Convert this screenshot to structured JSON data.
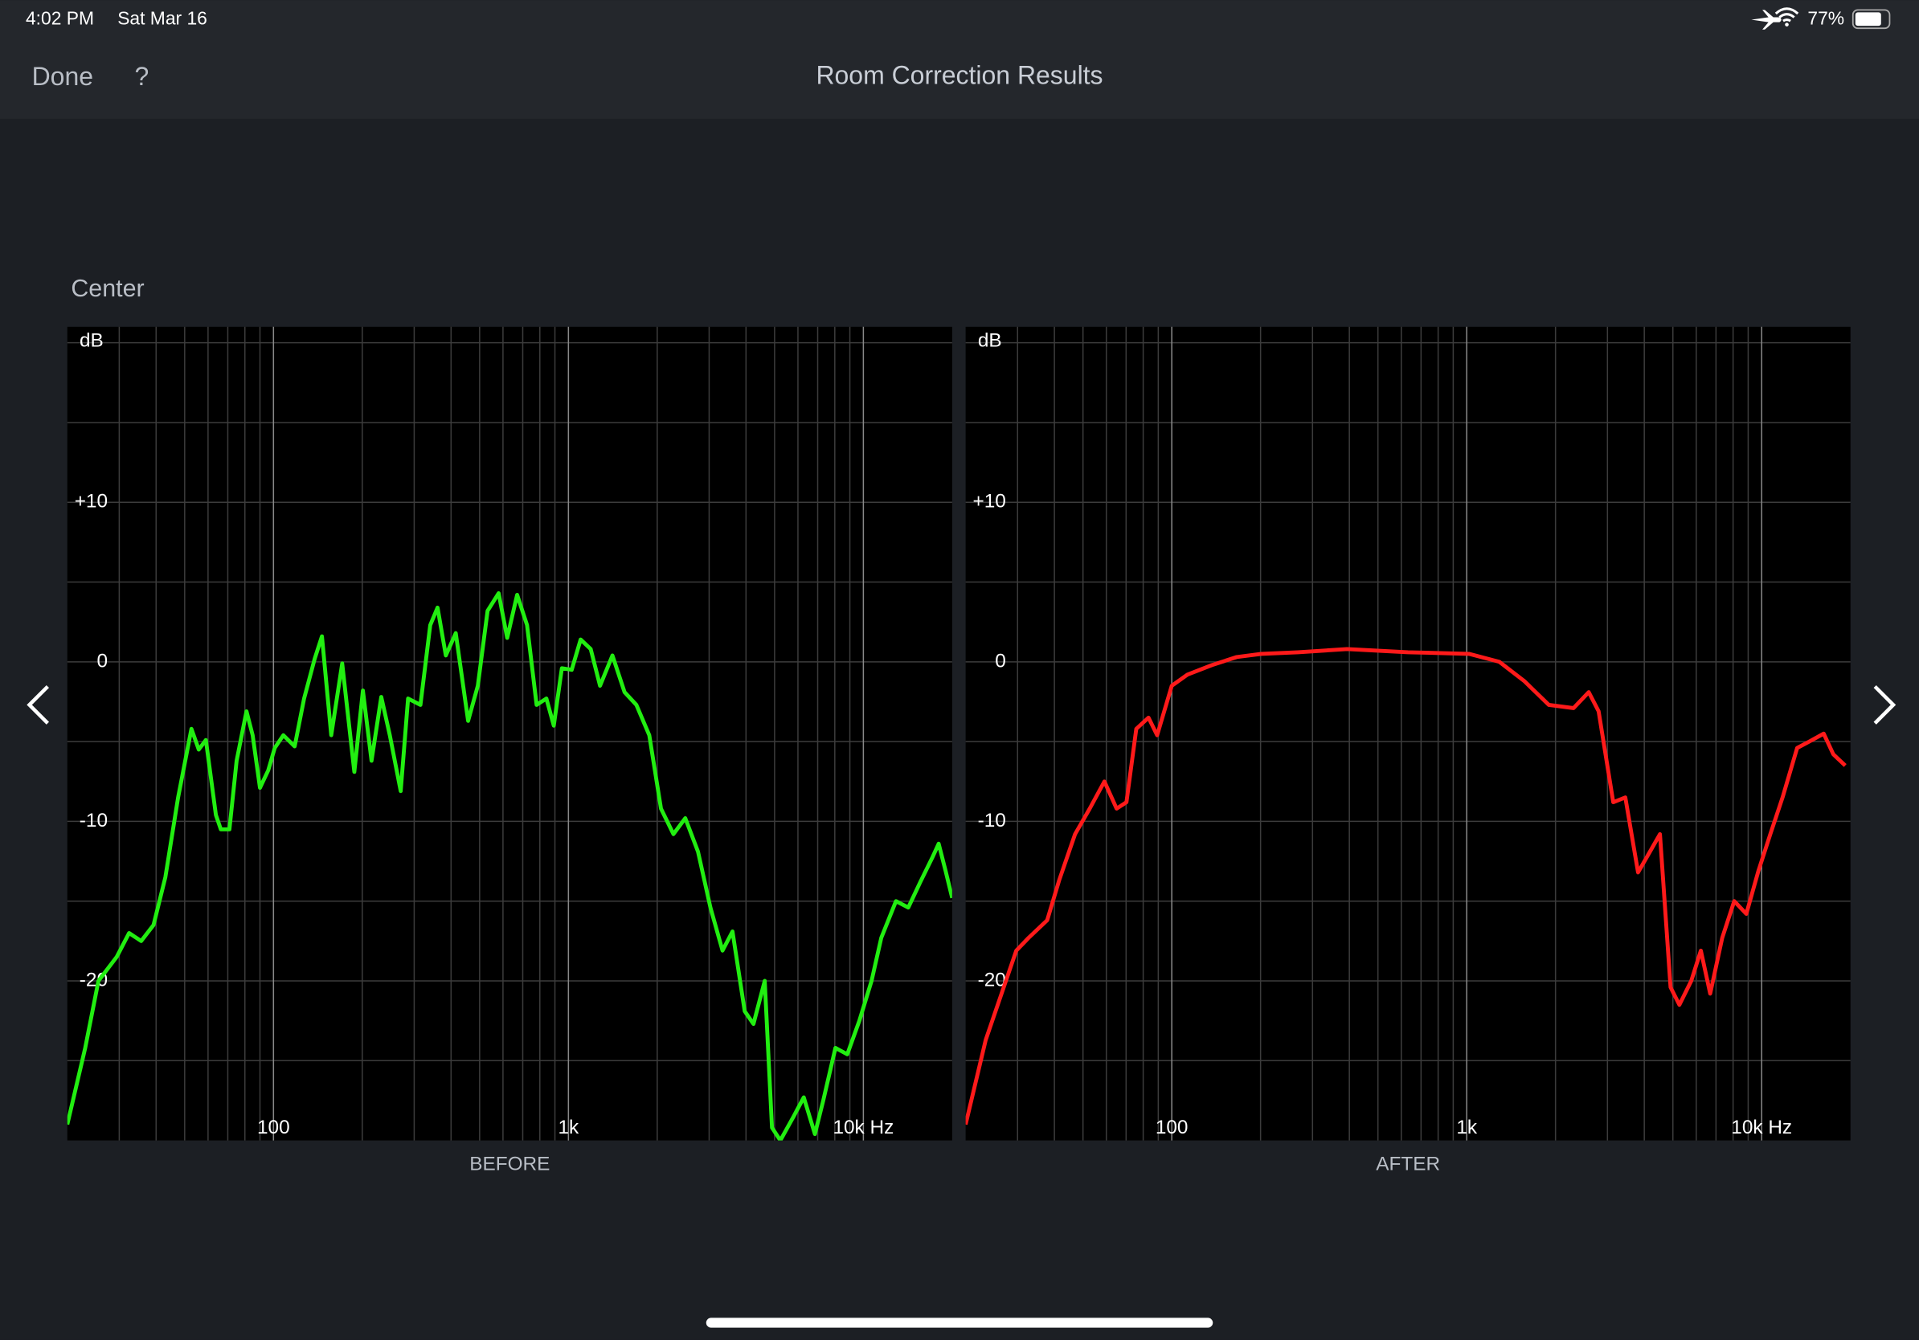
{
  "status": {
    "time": "4:02 PM",
    "date": "Sat Mar 16",
    "battery": "77%"
  },
  "nav": {
    "done": "Done",
    "help": "?",
    "title": "Room Correction Results"
  },
  "section": "Center",
  "chart_data": [
    {
      "type": "line",
      "title": "BEFORE",
      "ylabel": "dB",
      "xscale": "log",
      "grid": true,
      "xlim": [
        20,
        20000
      ],
      "ylim": [
        -30,
        21
      ],
      "xticks": [
        100,
        {
          "value": 1000,
          "label": "1k"
        },
        {
          "value": 10000,
          "label": "10k Hz"
        }
      ],
      "x_minor_grid": [
        30,
        40,
        50,
        60,
        70,
        80,
        90,
        200,
        300,
        400,
        500,
        600,
        700,
        800,
        900,
        2000,
        3000,
        4000,
        5000,
        6000,
        7000,
        8000,
        9000
      ],
      "yticks": [
        {
          "value": 10,
          "label": "+10"
        },
        0,
        -10,
        -20
      ],
      "y_minor_grid": [
        20,
        15,
        5,
        -5,
        -15,
        -25
      ],
      "x": [
        20,
        23,
        25.5,
        29.4,
        32.4,
        35.6,
        39.2,
        43,
        47.5,
        52.7,
        55.8,
        59,
        63.8,
        66.3,
        70.9,
        75,
        81,
        85,
        90,
        96,
        101,
        108,
        118,
        127,
        138,
        146,
        157,
        171,
        188,
        201,
        215,
        232,
        248,
        270,
        286,
        315,
        340,
        360,
        384,
        415,
        457,
        493,
        532,
        580,
        620,
        670,
        724,
        780,
        842,
        892,
        950,
        1026,
        1100,
        1190,
        1280,
        1410,
        1550,
        1700,
        1880,
        2060,
        2270,
        2490,
        2750,
        3030,
        3330,
        3600,
        3960,
        4240,
        4630,
        4900,
        5230,
        5800,
        6280,
        6850,
        7310,
        8040,
        8820,
        9690,
        10660,
        11500,
        12900,
        14200,
        15600,
        17100,
        18000,
        19000,
        20000
      ],
      "series": [
        {
          "color": "#22ee11",
          "values": [
            -29,
            -24.2,
            -20,
            -18.5,
            -17,
            -17.5,
            -16.5,
            -13.5,
            -8.5,
            -4.2,
            -5.5,
            -4.9,
            -9.6,
            -10.5,
            -10.5,
            -6.2,
            -3.1,
            -4.6,
            -7.9,
            -6.8,
            -5.4,
            -4.6,
            -5.3,
            -2.3,
            0.2,
            1.6,
            -4.6,
            -0.1,
            -6.9,
            -1.8,
            -6.2,
            -2.2,
            -4.6,
            -8.1,
            -2.3,
            -2.7,
            2.3,
            3.4,
            0.4,
            1.8,
            -3.7,
            -1.5,
            3.2,
            4.3,
            1.5,
            4.2,
            2.3,
            -2.7,
            -2.3,
            -4,
            -0.4,
            -0.5,
            1.4,
            0.8,
            -1.5,
            0.4,
            -1.9,
            -2.7,
            -4.6,
            -9.2,
            -10.8,
            -9.8,
            -11.9,
            -15.4,
            -18.1,
            -16.9,
            -21.9,
            -22.7,
            -20,
            -29.2,
            -30,
            -28.5,
            -27.3,
            -29.6,
            -27.5,
            -24.2,
            -24.6,
            -22.5,
            -20,
            -17.3,
            -15,
            -15.4,
            -13.8,
            -12.3,
            -11.4,
            -13.1,
            -14.8
          ]
        }
      ]
    },
    {
      "type": "line",
      "title": "AFTER",
      "ylabel": "dB",
      "xscale": "log",
      "grid": true,
      "xlim": [
        20,
        20000
      ],
      "ylim": [
        -30,
        21
      ],
      "xticks": [
        100,
        {
          "value": 1000,
          "label": "1k"
        },
        {
          "value": 10000,
          "label": "10k Hz"
        }
      ],
      "x_minor_grid": [
        30,
        40,
        50,
        60,
        70,
        80,
        90,
        200,
        300,
        400,
        500,
        600,
        700,
        800,
        900,
        2000,
        3000,
        4000,
        5000,
        6000,
        7000,
        8000,
        9000
      ],
      "yticks": [
        {
          "value": 10,
          "label": "+10"
        },
        0,
        -10,
        -20
      ],
      "y_minor_grid": [
        20,
        15,
        5,
        -5,
        -15,
        -25
      ],
      "x": [
        20,
        23.4,
        29.7,
        32.7,
        37.8,
        41.5,
        47,
        52.7,
        59.1,
        65,
        70.2,
        75.8,
        83.4,
        89.2,
        100,
        113,
        137,
        166,
        201,
        268,
        393,
        632,
        1018,
        1290,
        1566,
        1899,
        2302,
        2592,
        2800,
        3139,
        3449,
        3810,
        4180,
        4520,
        4910,
        5260,
        5770,
        6220,
        6690,
        7350,
        8070,
        8870,
        9750,
        10700,
        11770,
        13190,
        14490,
        16230,
        17500,
        19200
      ],
      "series": [
        {
          "color": "#ff1a1a",
          "values": [
            -29,
            -23.7,
            -18.1,
            -17.3,
            -16.2,
            -13.7,
            -10.8,
            -9.2,
            -7.5,
            -9.2,
            -8.8,
            -4.2,
            -3.5,
            -4.6,
            -1.5,
            -0.8,
            -0.2,
            0.3,
            0.5,
            0.6,
            0.8,
            0.6,
            0.5,
            0,
            -1.2,
            -2.7,
            -2.9,
            -1.9,
            -3.1,
            -8.8,
            -8.5,
            -13.2,
            -11.9,
            -10.8,
            -20.4,
            -21.5,
            -20,
            -18.1,
            -20.8,
            -17.3,
            -15,
            -15.8,
            -13.1,
            -10.8,
            -8.5,
            -5.4,
            -5,
            -4.5,
            -5.8,
            -6.5
          ]
        }
      ]
    }
  ]
}
